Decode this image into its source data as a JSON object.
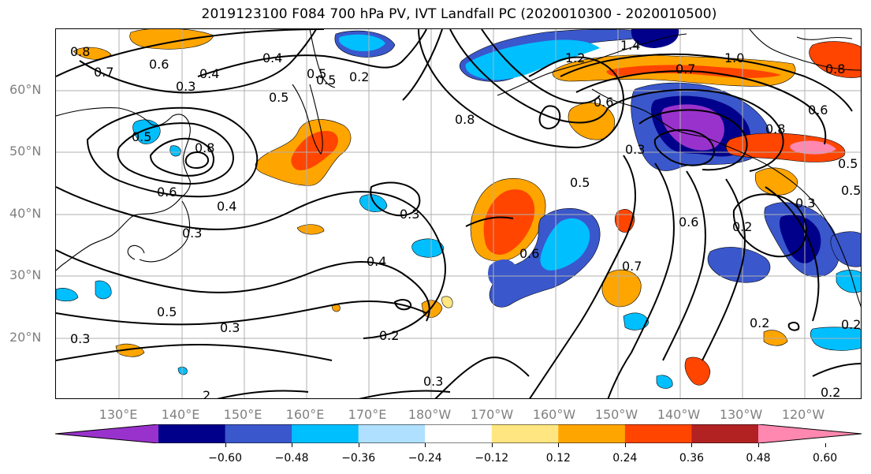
{
  "title": "2019123100 F084 700 hPa PV, IVT Landfall PC (2020010300 - 2020010500)",
  "lat_labels": [
    "60°N",
    "50°N",
    "40°N",
    "30°N",
    "20°N"
  ],
  "lon_labels": [
    "130°E",
    "140°E",
    "150°E",
    "160°E",
    "170°E",
    "180°W",
    "170°W",
    "160°W",
    "150°W",
    "140°W",
    "130°W",
    "120°W"
  ],
  "colorbar": {
    "ticks": [
      "−0.60",
      "−0.48",
      "−0.36",
      "−0.24",
      "−0.12",
      "0.12",
      "0.24",
      "0.36",
      "0.48",
      "0.60"
    ],
    "colors": [
      "#9932cc",
      "#00008b",
      "#3a57cc",
      "#00bfff",
      "#b0e0ff",
      "#ffffff",
      "#ffe680",
      "#ffa500",
      "#ff4500",
      "#b22222",
      "#ff88b0"
    ],
    "levels": [
      -0.72,
      -0.6,
      -0.48,
      -0.36,
      -0.24,
      -0.12,
      0.12,
      0.24,
      0.36,
      0.48,
      0.6,
      0.72
    ]
  },
  "contour_labels": [
    "0.8",
    "0.7",
    "0.6",
    "0.4",
    "0.4",
    "0.5",
    "0.2",
    "0.5",
    "0.8",
    "0.6",
    "0.5",
    "0.5",
    "1.2",
    "1.4",
    "1.0",
    "0.7",
    "0.8",
    "0.6",
    "0.8",
    "0.5",
    "0.3",
    "0.3",
    "0.4",
    "0.3",
    "0.5",
    "0.6",
    "0.6",
    "0.7",
    "0.2",
    "0.3",
    "0.5",
    "0.3",
    "0.2",
    "0.3",
    "0.4",
    "0.2",
    "0.3",
    "0.2",
    "0.3",
    "2",
    "0.2",
    "0.8",
    "0.5",
    "0.6"
  ]
}
